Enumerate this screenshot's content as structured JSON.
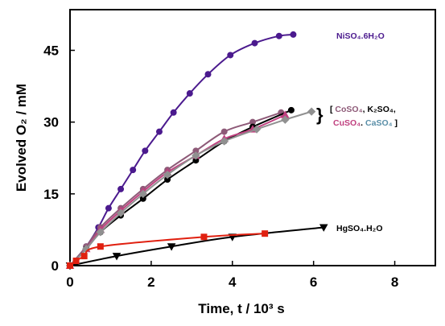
{
  "chart_data": {
    "type": "scatter",
    "xlabel": "Time, t / 10³ s",
    "ylabel": "Evolved O₂ / mM",
    "xlim": [
      0,
      9
    ],
    "ylim": [
      0,
      53.5
    ],
    "xticks": [
      0,
      2,
      4,
      6,
      8
    ],
    "yticks": [
      0,
      15,
      30,
      45
    ],
    "grid": false,
    "series": [
      {
        "name": "NiSO₄.6H₂O",
        "color": "#4b1a8e",
        "marker": "circle",
        "x": [
          0,
          0.4,
          0.7,
          0.95,
          1.25,
          1.55,
          1.85,
          2.2,
          2.55,
          2.95,
          3.4,
          3.95,
          4.55,
          5.15,
          5.5
        ],
        "y": [
          0,
          4,
          8,
          12,
          16,
          20,
          24,
          28,
          32,
          36,
          40,
          44,
          46.5,
          48,
          48.3
        ]
      },
      {
        "name": "CoSO₄",
        "color": "#8e5a78",
        "marker": "circle",
        "x": [
          0,
          0.4,
          0.75,
          1.25,
          1.8,
          2.4,
          3.1,
          3.8,
          4.5,
          5.2
        ],
        "y": [
          0,
          4,
          8,
          12,
          16,
          20,
          24,
          28,
          30,
          32
        ]
      },
      {
        "name": "K₂SO₄",
        "color": "#000000",
        "marker": "circle",
        "x": [
          0,
          0.4,
          0.75,
          1.25,
          1.8,
          2.4,
          3.1,
          3.8,
          4.5,
          5.45
        ],
        "y": [
          0,
          3.5,
          7,
          10.5,
          14,
          18,
          22,
          26,
          29,
          32.5
        ]
      },
      {
        "name": "CuSO₄",
        "color": "#c0407f",
        "marker": "triangle",
        "x": [
          0,
          0.4,
          0.75,
          1.25,
          1.8,
          2.4,
          3.1,
          3.8,
          4.5,
          5.3
        ],
        "y": [
          0,
          3.5,
          7.5,
          11.5,
          15.5,
          19.5,
          23,
          26.5,
          28.5,
          31.5
        ]
      },
      {
        "name": "CaSO₄",
        "color": "#909090",
        "marker": "diamond",
        "x": [
          0,
          0.4,
          0.75,
          1.25,
          1.8,
          2.4,
          3.1,
          3.8,
          4.6,
          5.3,
          5.95
        ],
        "y": [
          0,
          3.5,
          7,
          11,
          15,
          19,
          23,
          26,
          28.5,
          30.5,
          32.2
        ]
      },
      {
        "name": "HgSO₄.H₂O",
        "color": "#000000",
        "marker": "triangle-down",
        "x": [
          0,
          1.15,
          2.5,
          4.0,
          6.25
        ],
        "y": [
          0,
          2,
          4,
          6,
          8
        ]
      },
      {
        "name": "",
        "color": "#e02010",
        "marker": "square",
        "x": [
          0,
          0.15,
          0.35,
          0.75,
          3.3,
          4.8
        ],
        "y": [
          0,
          1,
          2,
          4,
          6,
          6.7
        ]
      }
    ],
    "annotations": {
      "ni": "NiSO₄.6H₂O",
      "hg": "HgSO₄.H₂O",
      "bracket_open": "[ ",
      "bracket_close": " ]",
      "brace": "}",
      "sep": ", ",
      "sep2": ". ",
      "co": "CoSO₄",
      "k": "K₂SO₄,",
      "cu": "CuSO₄",
      "ca": "CaSO₄"
    }
  }
}
